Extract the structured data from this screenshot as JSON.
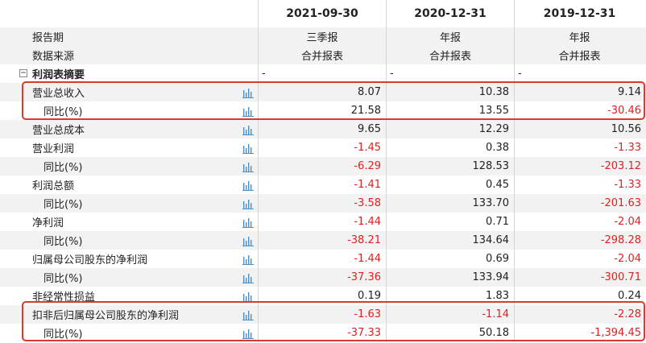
{
  "header": {
    "periods": [
      "2021-09-30",
      "2020-12-31",
      "2019-12-31"
    ]
  },
  "meta_rows": [
    {
      "label": "报告期",
      "values": [
        "三季报",
        "年报",
        "年报"
      ]
    },
    {
      "label": "数据来源",
      "values": [
        "合并报表",
        "合并报表",
        "合并报表"
      ]
    }
  ],
  "section": {
    "label": "利润表摘要",
    "toggle": "−",
    "values": [
      "-",
      "-",
      "-"
    ]
  },
  "rows": [
    {
      "label": "营业总收入",
      "values": [
        "8.07",
        "10.38",
        "9.14"
      ]
    },
    {
      "label": "同比(%)",
      "values": [
        "21.58",
        "13.55",
        "-30.46"
      ]
    },
    {
      "label": "营业总成本",
      "values": [
        "9.65",
        "12.29",
        "10.56"
      ]
    },
    {
      "label": "营业利润",
      "values": [
        "-1.45",
        "0.38",
        "-1.33"
      ]
    },
    {
      "label": "同比(%)",
      "values": [
        "-6.29",
        "128.53",
        "-203.12"
      ]
    },
    {
      "label": "利润总额",
      "values": [
        "-1.41",
        "0.45",
        "-1.33"
      ]
    },
    {
      "label": "同比(%)",
      "values": [
        "-3.58",
        "133.70",
        "-201.63"
      ]
    },
    {
      "label": "净利润",
      "values": [
        "-1.44",
        "0.71",
        "-2.04"
      ]
    },
    {
      "label": "同比(%)",
      "values": [
        "-38.21",
        "134.64",
        "-298.28"
      ]
    },
    {
      "label": "归属母公司股东的净利润",
      "values": [
        "-1.44",
        "0.69",
        "-2.04"
      ]
    },
    {
      "label": "同比(%)",
      "values": [
        "-37.36",
        "133.94",
        "-300.71"
      ]
    },
    {
      "label": "非经常性损益",
      "values": [
        "0.19",
        "1.83",
        "0.24"
      ]
    },
    {
      "label": "扣非后归属母公司股东的净利润",
      "values": [
        "-1.63",
        "-1.14",
        "-2.28"
      ]
    },
    {
      "label": "同比(%)",
      "values": [
        "-37.33",
        "50.18",
        "-1,394.45"
      ]
    }
  ],
  "colors": {
    "negative": "#e02020",
    "highlight_border": "#d93a2f",
    "chart_icon": "#4a90c8"
  },
  "icons": {
    "row_chart": "bar-chart-icon",
    "section_toggle": "collapse-icon"
  }
}
